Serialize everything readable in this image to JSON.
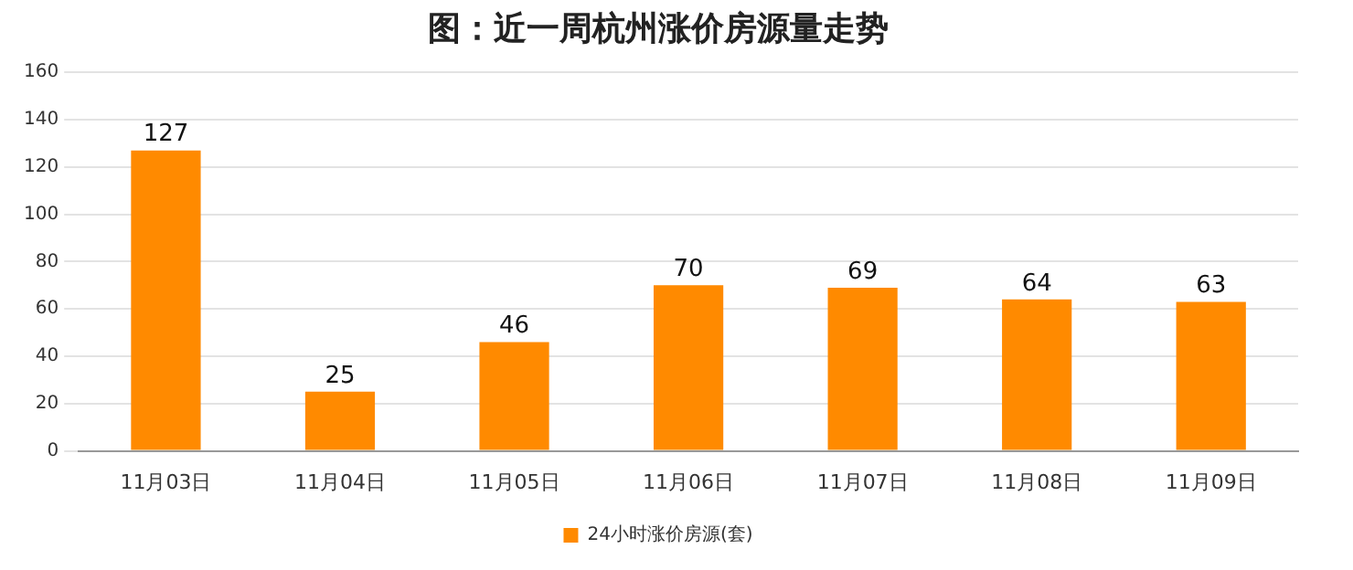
{
  "chart_data": {
    "type": "bar",
    "title": "图：近一周杭州涨价房源量走势",
    "categories": [
      "11月03日",
      "11月04日",
      "11月05日",
      "11月06日",
      "11月07日",
      "11月08日",
      "11月09日"
    ],
    "series": [
      {
        "name": "24小时涨价房源(套)",
        "color": "#ff8a00",
        "values": [
          127,
          25,
          46,
          70,
          69,
          64,
          63
        ]
      }
    ],
    "ylim": [
      0,
      160
    ],
    "yticks": [
      0,
      20,
      40,
      60,
      80,
      100,
      120,
      140,
      160
    ],
    "grid": "y",
    "legend": "bottom",
    "data_labels": true
  }
}
